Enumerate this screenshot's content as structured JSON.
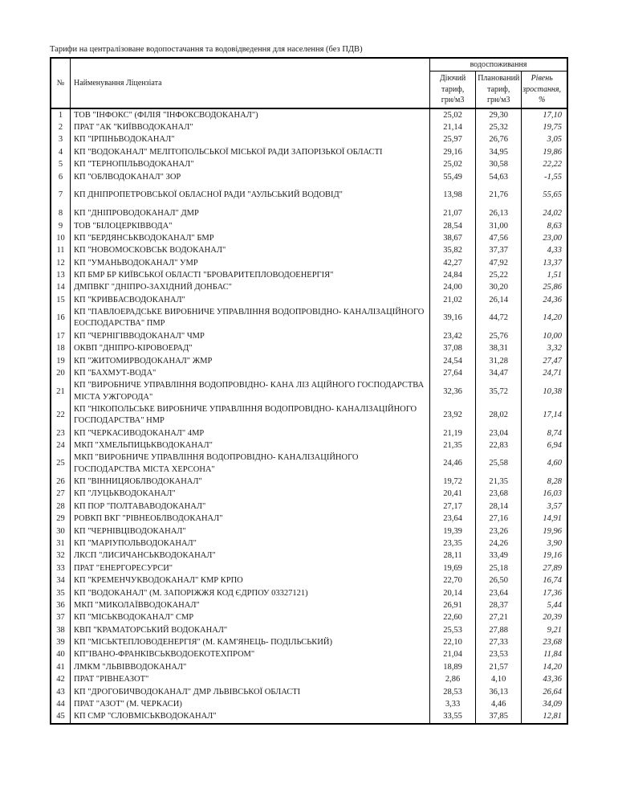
{
  "page": {
    "title": "Тарифи на централізоване водопостачання та водовідведення для населення (без ПДВ)"
  },
  "table": {
    "headers": {
      "num": "№",
      "name": "Найменування Ліцензіата",
      "group": "водоспоживання",
      "current": "Діючий\nтариф,\nгрн/м3",
      "planned": "Планований\nтариф,\nгрн/м3",
      "growth": "Рівень\nзростання,\n%"
    },
    "rows": [
      {
        "num": "1",
        "name": "ТОВ \"ІНФОКС\" (ФІЛІЯ \"ІНФОКСВОДОКАНАЛ\")",
        "current": "25,02",
        "planned": "29,30",
        "growth": "17,10",
        "tall": false
      },
      {
        "num": "2",
        "name": "ПРАТ \"АК \"КИЇВВОДОКАНАЛ\"",
        "current": "21,14",
        "planned": "25,32",
        "growth": "19,75",
        "tall": false
      },
      {
        "num": "3",
        "name": "КП \"ІРПІНЬВОДОКАНАЛ\"",
        "current": "25,97",
        "planned": "26,76",
        "growth": "3,05",
        "tall": false
      },
      {
        "num": "4",
        "name": "КП \"ВОДОКАНАЛ\" МЕЛІТОПОЛЬСЬКОЇ МІСЬКОЇ РАДИ ЗАПОРІЗЬКОЇ ОБЛАСТІ",
        "current": "29,16",
        "planned": "34,95",
        "growth": "19,86",
        "tall": false
      },
      {
        "num": "5",
        "name": "КП \"ТЕРНОПІЛЬВОДОКАНАЛ\"",
        "current": "25,02",
        "planned": "30,58",
        "growth": "22,22",
        "tall": false
      },
      {
        "num": "6",
        "name": "КП \"ОБЛВОДОКАНАЛ\" ЗОР",
        "current": "55,49",
        "planned": "54,63",
        "growth": "-1,55",
        "tall": false
      },
      {
        "num": "7",
        "name": "КП ДНІПРОПЕТРОВСЬКОЇ ОБЛАСНОЇ РАДИ \"АУЛЬСЬКИЙ ВОДОВІД\"",
        "current": "13,98",
        "planned": "21,76",
        "growth": "55,65",
        "tall": true
      },
      {
        "num": "8",
        "name": "КП \"ДНІПРОВОДОКАНАЛ\" ДМР",
        "current": "21,07",
        "planned": "26,13",
        "growth": "24,02",
        "tall": false
      },
      {
        "num": "9",
        "name": "ТОВ \"БІЛОЦЕРКІВВОДА\"",
        "current": "28,54",
        "planned": "31,00",
        "growth": "8,63",
        "tall": false
      },
      {
        "num": "10",
        "name": "КП \"БЕРДЯНСЬКВОДОКАНАЛ\" БМР",
        "current": "38,67",
        "planned": "47,56",
        "growth": "23,00",
        "tall": false
      },
      {
        "num": "11",
        "name": "КП \"НОВОМОСКОВСЬК ВОДОКАНАЛ\"",
        "current": "35,82",
        "planned": "37,37",
        "growth": "4,33",
        "tall": false
      },
      {
        "num": "12",
        "name": "КП \"УМАНЬВОДОКАНАЛ\" УМР",
        "current": "42,27",
        "planned": "47,92",
        "growth": "13,37",
        "tall": false
      },
      {
        "num": "13",
        "name": "КП БМР БР КИЇВСЬКОЇ ОБЛАСТІ \"БРОВАРИТЕПЛОВОДОЕНЕРГІЯ\"",
        "current": "24,84",
        "planned": "25,22",
        "growth": "1,51",
        "tall": false
      },
      {
        "num": "14",
        "name": "ДМПВКГ \"ДНІПРО-ЗАХІДНИЙ ДОНБАС\"",
        "current": "24,00",
        "planned": "30,20",
        "growth": "25,86",
        "tall": false
      },
      {
        "num": "15",
        "name": "КП \"КРИВБАСВОДОКАНАЛ\"",
        "current": "21,02",
        "planned": "26,14",
        "growth": "24,36",
        "tall": false
      },
      {
        "num": "16",
        "name": "КП \"ПАВЛОЕРАДСЬКЕ ВИРОБНИЧЕ УПРАВЛІННЯ ВОДОПРОВІДНО- КАНАЛІЗАЦІЙНОГО ЕОСПОДАРСТВА\" ПМР",
        "current": "39,16",
        "planned": "44,72",
        "growth": "14,20",
        "tall": false
      },
      {
        "num": "17",
        "name": "КП \"ЧЕРНІГІВВОДОКАНАЛ\" ЧМР",
        "current": "23,42",
        "planned": "25,76",
        "growth": "10,00",
        "tall": false
      },
      {
        "num": "18",
        "name": "ОКВП \"ДНІПРО-КІРОВОЕРАД\"",
        "current": "37,08",
        "planned": "38,31",
        "growth": "3,32",
        "tall": false
      },
      {
        "num": "19",
        "name": "КП \"ЖИТОМИРВОДОКАНАЛ\" ЖМР",
        "current": "24,54",
        "planned": "31,28",
        "growth": "27,47",
        "tall": false
      },
      {
        "num": "20",
        "name": "КП \"БАХМУТ-ВОДА\"",
        "current": "27,64",
        "planned": "34,47",
        "growth": "24,71",
        "tall": false
      },
      {
        "num": "21",
        "name": "КП \"ВИРОБНИЧЕ УПРАВЛІННЯ ВОДОПРОВІДНО- КАНА ЛІЗ АЦІЙНОГО ГОСПОДАРСТВА МІСТА УЖГОРОДА\"",
        "current": "32,36",
        "planned": "35,72",
        "growth": "10,38",
        "tall": false
      },
      {
        "num": "22",
        "name": "КП \"НІКОПОЛЬСЬКЕ ВИРОБНИЧЕ УПРАВЛІННЯ ВОДОПРОВІДНО- КАНАЛІЗАЦІЙНОГО ГОСПОДАРСТВА\" НМР",
        "current": "23,92",
        "planned": "28,02",
        "growth": "17,14",
        "tall": false
      },
      {
        "num": "23",
        "name": "КП \"ЧЕРКАСИВОДОКАНАЛ\" 4МР",
        "current": "21,19",
        "planned": "23,04",
        "growth": "8,74",
        "tall": false
      },
      {
        "num": "24",
        "name": "МКП \"ХМЕЛЬПИЦЬКВОДОКАНАЛ\"",
        "current": "21,35",
        "planned": "22,83",
        "growth": "6,94",
        "tall": false
      },
      {
        "num": "25",
        "name": "МКП \"ВИРОБНИЧЕ УПРАВЛІННЯ ВОДОПРОВІДНО- КАНАЛІЗАЦІЙНОГО ГОСПОДАРСТВА МІСТА ХЕРСОНА\"",
        "current": "24,46",
        "planned": "25,58",
        "growth": "4,60",
        "tall": false
      },
      {
        "num": "26",
        "name": "КП \"ВІННИЦЯОБЛВОДОКАНАЛ\"",
        "current": "19,72",
        "planned": "21,35",
        "growth": "8,28",
        "tall": false
      },
      {
        "num": "27",
        "name": "КП \"ЛУЦЬКВОДОКАНАЛ\"",
        "current": "20,41",
        "planned": "23,68",
        "growth": "16,03",
        "tall": false
      },
      {
        "num": "28",
        "name": "КП ПОР \"ПОЛТАВАВОДОКАНАЛ\"",
        "current": "27,17",
        "planned": "28,14",
        "growth": "3,57",
        "tall": false
      },
      {
        "num": "29",
        "name": "РОВКП ВКГ \"РІВНЕОБЛВОДОКАНАЛ\"",
        "current": "23,64",
        "planned": "27,16",
        "growth": "14,91",
        "tall": false
      },
      {
        "num": "30",
        "name": "КП \"ЧЕРНІВЦІВОДОКАНАЛ\"",
        "current": "19,39",
        "planned": "23,26",
        "growth": "19,96",
        "tall": false
      },
      {
        "num": "31",
        "name": "КП \"МАРІУПОЛЬВОДОКАНАЛ\"",
        "current": "23,35",
        "planned": "24,26",
        "growth": "3,90",
        "tall": false
      },
      {
        "num": "32",
        "name": "ЛКСП \"ЛИСИЧАНСЬКВОДОКАНАЛ\"",
        "current": "28,11",
        "planned": "33,49",
        "growth": "19,16",
        "tall": false
      },
      {
        "num": "33",
        "name": "ПРАТ \"ЕНЕРГОРЕСУРСИ\"",
        "current": "19,69",
        "planned": "25,18",
        "growth": "27,89",
        "tall": false
      },
      {
        "num": "34",
        "name": "КП \"КРЕМЕНЧУКВОДОКАНАЛ\" КМР КРПО",
        "current": "22,70",
        "planned": "26,50",
        "growth": "16,74",
        "tall": false
      },
      {
        "num": "35",
        "name": "КП \"ВОДОКАНАЛ\" (М. ЗАПОРІЖЖЯ КОД ЄДРПОУ 03327121)",
        "current": "20,14",
        "planned": "23,64",
        "growth": "17,36",
        "tall": false
      },
      {
        "num": "36",
        "name": "МКП \"МИКОЛАЇВВОДОКАНАЛ\"",
        "current": "26,91",
        "planned": "28,37",
        "growth": "5,44",
        "tall": false
      },
      {
        "num": "37",
        "name": "КП \"МІСЬКВОДОКАНАЛ\" СМР",
        "current": "22,60",
        "planned": "27,21",
        "growth": "20,39",
        "tall": false
      },
      {
        "num": "38",
        "name": "КВП \"КРАМАТОРСЬКИЙ ВОДОКАНАЛ\"",
        "current": "25,53",
        "planned": "27,88",
        "growth": "9,21",
        "tall": false
      },
      {
        "num": "39",
        "name": "КП \"МІСЬКТЕПЛОВОДЕНЕРГІЯ\" (М. КАМ'ЯНЕЦЬ- ПОДІЛЬСЬКИЙ)",
        "current": "22,10",
        "planned": "27,33",
        "growth": "23,68",
        "tall": false
      },
      {
        "num": "40",
        "name": "КП\"ІВАНО-ФРАНКІВСЬКВОДОЕКОТЕХПРОМ\"",
        "current": "21,04",
        "planned": "23,53",
        "growth": "11,84",
        "tall": false
      },
      {
        "num": "41",
        "name": "ЛМКМ \"ЛЬВІВВОДОКАНАЛ\"",
        "current": "18,89",
        "planned": "21,57",
        "growth": "14,20",
        "tall": false
      },
      {
        "num": "42",
        "name": "ПРАТ \"РІВНЕАЗОТ\"",
        "current": "2,86",
        "planned": "4,10",
        "growth": "43,36",
        "tall": false
      },
      {
        "num": "43",
        "name": "КП \"ДРОГОБИЧВОДОКАНАЛ\" ДМР ЛЬВІВСЬКОЇ ОБЛАСТІ",
        "current": "28,53",
        "planned": "36,13",
        "growth": "26,64",
        "tall": false
      },
      {
        "num": "44",
        "name": "ПРАТ \"АЗОТ\" (М. ЧЕРКАСИ)",
        "current": "3,33",
        "planned": "4,46",
        "growth": "34,09",
        "tall": false
      },
      {
        "num": "45",
        "name": "КП СМР \"СЛОВМІСЬКВОДОКАНАЛ\"",
        "current": "33,55",
        "planned": "37,85",
        "growth": "12,81",
        "tall": false
      }
    ]
  }
}
